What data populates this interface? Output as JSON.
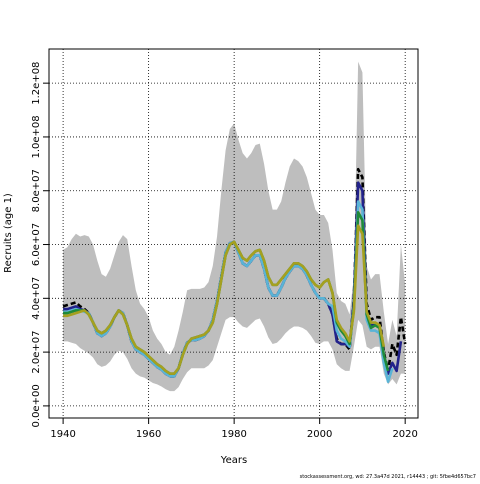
{
  "chart_data": {
    "type": "line",
    "xlabel": "Years",
    "ylabel": "Recruits (age 1)",
    "x": [
      1940,
      1941,
      1942,
      1943,
      1944,
      1945,
      1946,
      1947,
      1948,
      1949,
      1950,
      1951,
      1952,
      1953,
      1954,
      1955,
      1956,
      1957,
      1958,
      1959,
      1960,
      1961,
      1962,
      1963,
      1964,
      1965,
      1966,
      1967,
      1968,
      1969,
      1970,
      1971,
      1972,
      1973,
      1974,
      1975,
      1976,
      1977,
      1978,
      1979,
      1980,
      1981,
      1982,
      1983,
      1984,
      1985,
      1986,
      1987,
      1988,
      1989,
      1990,
      1991,
      1992,
      1993,
      1994,
      1995,
      1996,
      1997,
      1998,
      1999,
      2000,
      2001,
      2002,
      2003,
      2004,
      2005,
      2006,
      2007,
      2008,
      2009,
      2010,
      2011,
      2012,
      2013,
      2014,
      2015,
      2016,
      2017,
      2018,
      2019,
      2020
    ],
    "band": {
      "color": "#bebebe",
      "lower": [
        24000000.0,
        24000000.0,
        23500000.0,
        23000000.0,
        21500000.0,
        20500000.0,
        19500000.0,
        18000000.0,
        15500000.0,
        14500000.0,
        15000000.0,
        16500000.0,
        19000000.0,
        20500000.0,
        20000000.0,
        17500000.0,
        14000000.0,
        12000000.0,
        11000000.0,
        10500000.0,
        9500000.0,
        8500000.0,
        8000000.0,
        7200000.0,
        6200000.0,
        5500000.0,
        5500000.0,
        7000000.0,
        10000000.0,
        12500000.0,
        14000000.0,
        14000000.0,
        14000000.0,
        14000000.0,
        15000000.0,
        17000000.0,
        22000000.0,
        27000000.0,
        32000000.0,
        33000000.0,
        33000000.0,
        31000000.0,
        29500000.0,
        29000000.0,
        30500000.0,
        32000000.0,
        32500000.0,
        29500000.0,
        25500000.0,
        23000000.0,
        23500000.0,
        25000000.0,
        27000000.0,
        28500000.0,
        29500000.0,
        29500000.0,
        29000000.0,
        28000000.0,
        26000000.0,
        23500000.0,
        23000000.0,
        24000000.0,
        24000000.0,
        21000000.0,
        15500000.0,
        14000000.0,
        13000000.0,
        13000000.0,
        22000000.0,
        32000000.0,
        30000000.0,
        22000000.0,
        21000000.0,
        22000000.0,
        22000000.0,
        12000000.0,
        8000000.0,
        10000000.0,
        8000000.0,
        12000000.0,
        12000000.0
      ],
      "upper": [
        58000000.0,
        59000000.0,
        62000000.0,
        64000000.0,
        63000000.0,
        63500000.0,
        63000000.0,
        60000000.0,
        54000000.0,
        49000000.0,
        48000000.0,
        51000000.0,
        56000000.0,
        61000000.0,
        63500000.0,
        62000000.0,
        52000000.0,
        43000000.0,
        38000000.0,
        36000000.0,
        33000000.0,
        28000000.0,
        25000000.0,
        23000000.0,
        20000000.0,
        19000000.0,
        22000000.0,
        28000000.0,
        35000000.0,
        43000000.0,
        43500000.0,
        43500000.0,
        43500000.0,
        44000000.0,
        46000000.0,
        52000000.0,
        63000000.0,
        80000000.0,
        95000000.0,
        103000000.0,
        105000000.0,
        99000000.0,
        94000000.0,
        92000000.0,
        94000000.0,
        97000000.0,
        97500000.0,
        90000000.0,
        80000000.0,
        73000000.0,
        73000000.0,
        76000000.0,
        83000000.0,
        89000000.0,
        92000000.0,
        91000000.0,
        89000000.0,
        85000000.0,
        79000000.0,
        73000000.0,
        71000000.0,
        71000000.0,
        68000000.0,
        58000000.0,
        42000000.0,
        39000000.0,
        38000000.0,
        34000000.0,
        48000000.0,
        128000000.0,
        124000000.0,
        52000000.0,
        47000000.0,
        49000000.0,
        49000000.0,
        35000000.0,
        23000000.0,
        32000000.0,
        26000000.0,
        60000000.0,
        45000000.0
      ]
    },
    "series": [
      {
        "color": "#000000",
        "dashed": true,
        "values": [
          37000000.0,
          37500000.0,
          38000000.0,
          38500000.0,
          37000000.0,
          36000000.0,
          34500000.0,
          31000000.0,
          27000000.0,
          26000000.0,
          27000000.0,
          29500000.0,
          33000000.0,
          35500000.0,
          34500000.0,
          30000000.0,
          24000000.0,
          21000000.0,
          20000000.0,
          19000000.0,
          17500000.0,
          16000000.0,
          14500000.0,
          13500000.0,
          12000000.0,
          11000000.0,
          11000000.0,
          14000000.0,
          19500000.0,
          23500000.0,
          24500000.0,
          24500000.0,
          25000000.0,
          26000000.0,
          28000000.0,
          32000000.0,
          39000000.0,
          48000000.0,
          57000000.0,
          60500000.0,
          61000000.0,
          57000000.0,
          53000000.0,
          52000000.0,
          54000000.0,
          56000000.0,
          56000000.0,
          51000000.0,
          44000000.0,
          41000000.0,
          41000000.0,
          44000000.0,
          47500000.0,
          50000000.0,
          52000000.0,
          52000000.0,
          51000000.0,
          48500000.0,
          45000000.0,
          42000000.0,
          40000000.0,
          40000000.0,
          38000000.0,
          34000000.0,
          25000000.0,
          23000000.0,
          23000000.0,
          21000000.0,
          40000000.0,
          88000000.0,
          85000000.0,
          38000000.0,
          32000000.0,
          33000000.0,
          33000000.0,
          20000000.0,
          13000000.0,
          23000000.0,
          19000000.0,
          33000000.0,
          23000000.0
        ]
      },
      {
        "color": "#22228b",
        "values": [
          36000000.0,
          36000000.0,
          36500000.0,
          37000000.0,
          36000000.0,
          35500000.0,
          34500000.0,
          31000000.0,
          27000000.0,
          26000000.0,
          27000000.0,
          29500000.0,
          33000000.0,
          35500000.0,
          34500000.0,
          30000000.0,
          24000000.0,
          21000000.0,
          20000000.0,
          19000000.0,
          17500000.0,
          16000000.0,
          14500000.0,
          13500000.0,
          12000000.0,
          11000000.0,
          11000000.0,
          14000000.0,
          19500000.0,
          23500000.0,
          24500000.0,
          24500000.0,
          25000000.0,
          26000000.0,
          28000000.0,
          32000000.0,
          39000000.0,
          48000000.0,
          57000000.0,
          60500000.0,
          61000000.0,
          57000000.0,
          53000000.0,
          52000000.0,
          54000000.0,
          56000000.0,
          56000000.0,
          51000000.0,
          44000000.0,
          41000000.0,
          41000000.0,
          44000000.0,
          47500000.0,
          50000000.0,
          52000000.0,
          52000000.0,
          51000000.0,
          48500000.0,
          45000000.0,
          42000000.0,
          40000000.0,
          40000000.0,
          38000000.0,
          34000000.0,
          24000000.0,
          23000000.0,
          23000000.0,
          22000000.0,
          39000000.0,
          83000000.0,
          80000000.0,
          34000000.0,
          30000000.0,
          30000000.0,
          30000000.0,
          18000000.0,
          12000000.0,
          16000000.0,
          13000000.0,
          24000000.0,
          null
        ]
      },
      {
        "color": "#5ab4d6",
        "values": [
          35000000.0,
          35000000.0,
          35500000.0,
          36000000.0,
          35500000.0,
          35000000.0,
          34500000.0,
          31000000.0,
          27000000.0,
          26000000.0,
          27000000.0,
          29500000.0,
          33000000.0,
          35500000.0,
          34500000.0,
          30000000.0,
          24000000.0,
          21000000.0,
          20000000.0,
          19000000.0,
          17500000.0,
          16000000.0,
          14500000.0,
          13500000.0,
          12000000.0,
          11000000.0,
          11000000.0,
          14000000.0,
          19500000.0,
          23500000.0,
          24500000.0,
          24500000.0,
          25000000.0,
          26000000.0,
          28000000.0,
          32000000.0,
          39000000.0,
          48000000.0,
          57000000.0,
          60500000.0,
          61000000.0,
          57000000.0,
          53000000.0,
          52000000.0,
          54000000.0,
          56000000.0,
          56000000.0,
          51000000.0,
          44000000.0,
          41000000.0,
          41000000.0,
          44000000.0,
          47500000.0,
          50000000.0,
          52000000.0,
          52000000.0,
          51000000.0,
          48500000.0,
          45000000.0,
          42000000.0,
          40000000.0,
          40000000.0,
          38000000.0,
          37000000.0,
          28000000.0,
          25000000.0,
          24000000.0,
          22000000.0,
          37000000.0,
          76000000.0,
          73000000.0,
          32000000.0,
          28000000.0,
          28000000.0,
          27000000.0,
          16000000.0,
          9000000.0,
          14000000.0,
          null,
          null,
          null
        ]
      },
      {
        "color": "#1f8a3a",
        "values": [
          34500000.0,
          34500000.0,
          35000000.0,
          35500000.0,
          35500000.0,
          35500000.0,
          34000000.0,
          31000000.0,
          28000000.0,
          27000000.0,
          28000000.0,
          30000000.0,
          33000000.0,
          35500000.0,
          34000000.0,
          30000000.0,
          25000000.0,
          22000000.0,
          21000000.0,
          20000000.0,
          18500000.0,
          17000000.0,
          15500000.0,
          14500000.0,
          13000000.0,
          12000000.0,
          12000000.0,
          14000000.0,
          19000000.0,
          23000000.0,
          25000000.0,
          25500000.0,
          26000000.0,
          26500000.0,
          28000000.0,
          31000000.0,
          38000000.0,
          47000000.0,
          56000000.0,
          60000000.0,
          61000000.0,
          58000000.0,
          55000000.0,
          54000000.0,
          56000000.0,
          57500000.0,
          58000000.0,
          54000000.0,
          48000000.0,
          45000000.0,
          45000000.0,
          47000000.0,
          49000000.0,
          51000000.0,
          53000000.0,
          53000000.0,
          52000000.0,
          50000000.0,
          47000000.0,
          45000000.0,
          44000000.0,
          46000000.0,
          47000000.0,
          42000000.0,
          31000000.0,
          28000000.0,
          26000000.0,
          23000000.0,
          36000000.0,
          72000000.0,
          69000000.0,
          34000000.0,
          29000000.0,
          30000000.0,
          29000000.0,
          19000000.0,
          13000000.0,
          null,
          null,
          null,
          null
        ]
      },
      {
        "color": "#a5a020",
        "values": [
          33500000.0,
          33500000.0,
          34000000.0,
          34500000.0,
          35000000.0,
          35500000.0,
          34000000.0,
          31000000.0,
          28000000.0,
          27000000.0,
          28000000.0,
          30000000.0,
          33000000.0,
          35500000.0,
          34000000.0,
          30000000.0,
          25000000.0,
          22000000.0,
          21000000.0,
          20000000.0,
          18500000.0,
          17000000.0,
          15500000.0,
          14500000.0,
          13000000.0,
          12000000.0,
          12000000.0,
          14000000.0,
          19000000.0,
          23000000.0,
          25000000.0,
          25500000.0,
          26000000.0,
          26500000.0,
          28000000.0,
          31000000.0,
          38000000.0,
          47000000.0,
          56000000.0,
          60000000.0,
          61000000.0,
          58000000.0,
          55000000.0,
          54000000.0,
          56000000.0,
          57500000.0,
          58000000.0,
          54000000.0,
          48000000.0,
          45000000.0,
          45000000.0,
          47000000.0,
          49000000.0,
          51000000.0,
          53000000.0,
          53000000.0,
          52000000.0,
          50000000.0,
          47000000.0,
          45000000.0,
          44000000.0,
          46000000.0,
          47000000.0,
          42000000.0,
          32000000.0,
          29000000.0,
          27000000.0,
          24000000.0,
          35000000.0,
          67000000.0,
          64000000.0,
          35000000.0,
          31000000.0,
          31000000.0,
          30000000.0,
          22000000.0,
          null,
          null,
          null,
          null,
          null
        ]
      }
    ],
    "xlim": [
      1936.7,
      2023.0
    ],
    "ylim": [
      -4500000.0,
      132700000.0
    ],
    "xticks": [
      1940,
      1960,
      1980,
      2000,
      2020
    ],
    "yticks": [
      {
        "value": 0,
        "label": "0.0e+00"
      },
      {
        "value": 20000000,
        "label": "2.0e+07"
      },
      {
        "value": 40000000,
        "label": "4.0e+07"
      },
      {
        "value": 60000000,
        "label": "6.0e+07"
      },
      {
        "value": 80000000,
        "label": "8.0e+07"
      },
      {
        "value": 100000000,
        "label": "1.0e+08"
      },
      {
        "value": 120000000,
        "label": "1.2e+08"
      }
    ],
    "grid": true
  },
  "footer": "stockassessment.org, wd: 27.3a47d 2021, r14443 ; git: 5fbe4d657bc7"
}
